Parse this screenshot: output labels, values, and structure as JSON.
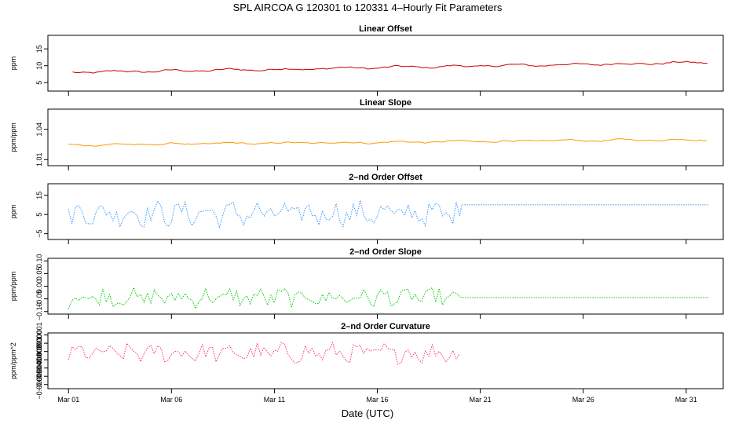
{
  "page": {
    "title": "SPL   AIRCOA G   120301 to 120331   4–Hourly Fit Parameters",
    "xlabel": "Date (UTC)"
  },
  "chart_data": [
    {
      "type": "line",
      "title": "Linear Offset",
      "ylabel": "ppm",
      "ylim": [
        2.5,
        19
      ],
      "yticks": [
        5,
        10,
        15
      ],
      "ytick_labels": [
        "5",
        "10",
        "15"
      ],
      "color": "#cc0000",
      "style": "noisy-trend",
      "x_start_day": 1.2,
      "x_end_day": 32.1,
      "start_value": 8.0,
      "end_value": 11.0,
      "noise_amplitude": 0.45,
      "flat_after_day": null,
      "flat_value": null,
      "series_name": "Linear Offset"
    },
    {
      "type": "line",
      "title": "Linear Slope",
      "ylabel": "ppm/ppm",
      "ylim": [
        1.004,
        1.06
      ],
      "yticks": [
        1.01,
        1.04
      ],
      "ytick_labels": [
        "1.01",
        "1.04"
      ],
      "color": "#ff9900",
      "style": "noisy-trend",
      "x_start_day": 1.0,
      "x_end_day": 32.1,
      "start_value": 1.0245,
      "end_value": 1.03,
      "noise_amplitude": 0.0012,
      "flat_after_day": null,
      "flat_value": null,
      "series_name": "Linear Slope"
    },
    {
      "type": "line",
      "title": "2–nd Order Offset",
      "ylabel": "ppm",
      "ylim": [
        -8,
        21
      ],
      "yticks": [
        -5,
        5,
        15
      ],
      "ytick_labels": [
        "−5",
        "5",
        "15"
      ],
      "color": "#3399ff",
      "style": "oscillating",
      "x_start_day": 1.0,
      "x_end_day": 32.1,
      "start_value": 5.5,
      "end_value": 5.5,
      "noise_amplitude": 6.5,
      "flat_after_day": 20.0,
      "flat_value": 10.0,
      "series_name": "2nd Order Offset"
    },
    {
      "type": "line",
      "title": "2–nd Order Slope",
      "ylabel": "ppm/ppm",
      "ylim": [
        -0.11,
        0.11
      ],
      "yticks": [
        -0.1,
        -0.05,
        0.0,
        0.05,
        0.1
      ],
      "ytick_labels": [
        "−0.10",
        "−0.05",
        "0.00",
        "0.05",
        "0.10"
      ],
      "color": "#00cc00",
      "style": "oscillating",
      "x_start_day": 1.0,
      "x_end_day": 32.1,
      "start_value": -0.045,
      "end_value": -0.045,
      "noise_amplitude": 0.04,
      "flat_after_day": 20.0,
      "flat_value": -0.045,
      "series_name": "2nd Order Slope"
    },
    {
      "type": "line",
      "title": "2–nd Order Curvature",
      "ylabel": "ppm/ppm^2",
      "ylim": [
        -5.5e-05,
        1.25e-05
      ],
      "yticks": [
        -5e-05,
        -3e-05,
        -1e-05,
        1e-05
      ],
      "ytick_labels": [
        "−0.00005",
        "−0.00003",
        "−0.00001",
        "0.00001"
      ],
      "extra_ytick_labels": [
        "0.00000",
        "−0.00002",
        "−0.00004"
      ],
      "extra_yticks": [
        0.0,
        -2e-05,
        -4e-05
      ],
      "color": "#ff3366",
      "style": "oscillating",
      "x_start_day": 1.0,
      "x_end_day": 20.0,
      "start_value": -1.2e-05,
      "end_value": -1.2e-05,
      "noise_amplitude": 1.2e-05,
      "flat_after_day": null,
      "flat_value": null,
      "series_name": "2nd Order Curvature"
    }
  ],
  "xaxis": {
    "xlim_days": [
      0.0,
      32.8
    ],
    "ticks": [
      1,
      6,
      11,
      16,
      21,
      26,
      31
    ],
    "tick_labels": [
      "Mar 01",
      "Mar 06",
      "Mar 11",
      "Mar 16",
      "Mar 21",
      "Mar 26",
      "Mar 31"
    ]
  }
}
